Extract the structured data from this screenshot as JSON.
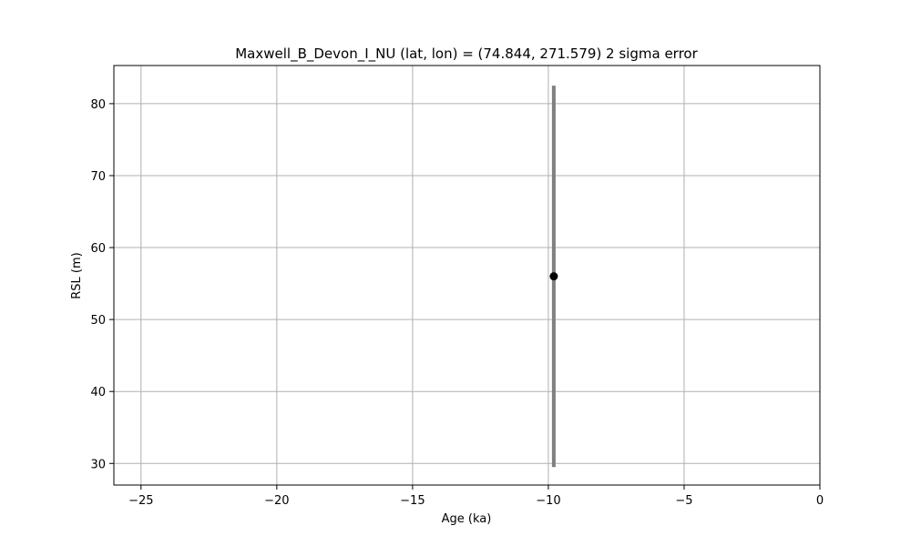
{
  "chart_data": {
    "type": "scatter",
    "title": "Maxwell_B_Devon_I_NU (lat, lon) = (74.844, 271.579)  2 sigma error",
    "xlabel": "Age (ka)",
    "ylabel": "RSL (m)",
    "xlim": [
      -26,
      0
    ],
    "ylim": [
      27,
      85.3
    ],
    "xticks": [
      -25,
      -20,
      -15,
      -10,
      -5,
      0
    ],
    "yticks": [
      30,
      40,
      50,
      60,
      70,
      80
    ],
    "grid": true,
    "points": [
      {
        "x": -9.8,
        "y": 56.0,
        "y_low": 29.5,
        "y_high": 82.5
      }
    ],
    "colors": {
      "point": "#000000",
      "errorbar": "#808080",
      "grid": "#b0b0b0",
      "axes": "#000000"
    }
  }
}
